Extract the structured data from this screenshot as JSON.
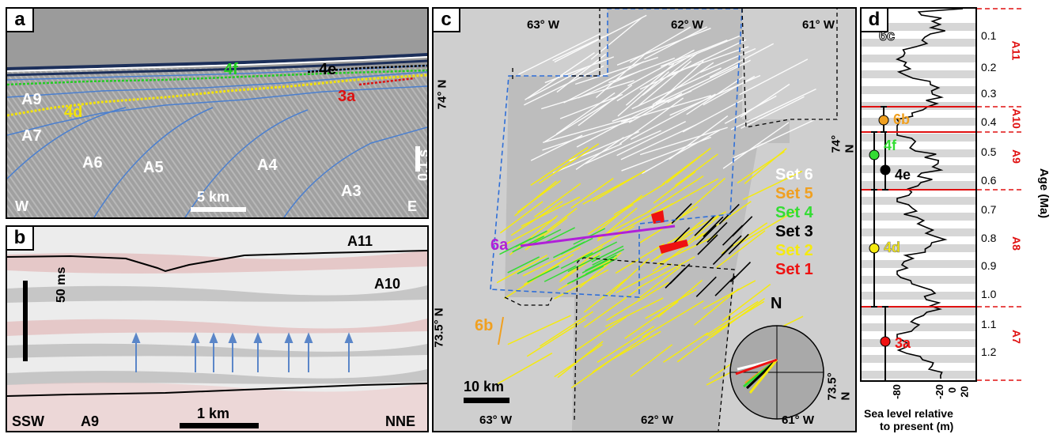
{
  "panels": {
    "a": {
      "label": "a",
      "units": [
        "A9",
        "A7",
        "A6",
        "A5",
        "A4",
        "A3"
      ],
      "horizons": {
        "h4f": "4f",
        "h4e": "4e",
        "h3a": "3a",
        "h4d": "4d"
      },
      "scale_v": "0.1 s",
      "scale_h": "5 km",
      "west": "W",
      "east": "E",
      "colors": {
        "h4f": "#22cc22",
        "h4e": "#000000",
        "h3a": "#dd1111",
        "h4d": "#f2e20a",
        "unit_line": "#4a7fd0"
      }
    },
    "b": {
      "label": "b",
      "units": {
        "top": "A11",
        "mid": "A10",
        "bottom": "A9"
      },
      "scale_v": "50 ms",
      "scale_h": "1 km",
      "left_dir": "SSW",
      "right_dir": "NNE",
      "arrow_color": "#5b86c8"
    },
    "c": {
      "label": "c",
      "top_lon": [
        "63° W",
        "62° W",
        "61° W"
      ],
      "bottom_lon": [
        "63° W",
        "62° W",
        "61° W"
      ],
      "lat_left": [
        "74° N",
        "73.5° N"
      ],
      "lat_right": [
        "74° N",
        "73.5° N"
      ],
      "legend": [
        {
          "label": "Set 6",
          "color": "#ffffff"
        },
        {
          "label": "Set 5",
          "color": "#f0a020"
        },
        {
          "label": "Set 4",
          "color": "#33dd33"
        },
        {
          "label": "Set 3",
          "color": "#000000"
        },
        {
          "label": "Set 2",
          "color": "#f5ea10"
        },
        {
          "label": "Set 1",
          "color": "#ee1111"
        }
      ],
      "profile_a": "6a",
      "profile_b": "6b",
      "scale": "10 km",
      "north": "N"
    },
    "d": {
      "label": "d",
      "age_ticks": [
        "0.1",
        "0.2",
        "0.3",
        "0.4",
        "0.5",
        "0.6",
        "0.7",
        "0.8",
        "0.9",
        "1.0",
        "1.1",
        "1.2"
      ],
      "x_ticks": [
        "-80",
        "-20",
        "0",
        "20"
      ],
      "ylabel": "Age (Ma)",
      "xlabel_line1": "Sea level relative",
      "xlabel_line2": "to present (m)",
      "units": [
        "A11",
        "A10",
        "A9",
        "A8",
        "A7"
      ],
      "points": [
        "6c",
        "6b",
        "4f",
        "4e",
        "4d",
        "3a"
      ]
    }
  }
}
